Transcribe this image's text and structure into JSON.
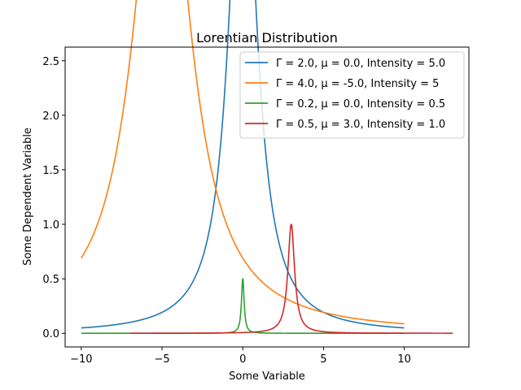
{
  "chart_data": {
    "type": "line",
    "title": "Lorentian Distribution",
    "xlabel": "Some Variable",
    "ylabel": "Some Dependent Variable",
    "xlim": [
      -11,
      14
    ],
    "ylim": [
      -0.125,
      2.625
    ],
    "xticks": [
      -10,
      -5,
      0,
      5,
      10
    ],
    "xtick_labels": [
      "−10",
      "−5",
      "0",
      "5",
      "10"
    ],
    "yticks": [
      0.0,
      0.5,
      1.0,
      1.5,
      2.0,
      2.5
    ],
    "ytick_labels": [
      "0.0",
      "0.5",
      "1.0",
      "1.5",
      "2.0",
      "2.5"
    ],
    "grid": false,
    "legend_position": "top-right",
    "series": [
      {
        "name": "Γ = 2.0, μ = 0.0, Intensity = 5.0",
        "gamma": 2.0,
        "mu": 0.0,
        "intensity": 5.0,
        "x_range": [
          -10,
          10
        ],
        "color": "#1f77b4"
      },
      {
        "name": "Γ = 4.0, μ = -5.0, Intensity = 5",
        "gamma": 4.0,
        "mu": -5.0,
        "intensity": 5.0,
        "x_range": [
          -10,
          10
        ],
        "color": "#ff7f0e"
      },
      {
        "name": "Γ = 0.2, μ = 0.0, Intensity = 0.5",
        "gamma": 0.2,
        "mu": 0.0,
        "intensity": 0.5,
        "x_range": [
          -10,
          10
        ],
        "color": "#2ca02c"
      },
      {
        "name": "Γ = 0.5, μ = 3.0, Intensity = 1.0",
        "gamma": 0.5,
        "mu": 3.0,
        "intensity": 1.0,
        "x_range": [
          -7,
          13
        ],
        "color": "#d62728"
      }
    ]
  }
}
